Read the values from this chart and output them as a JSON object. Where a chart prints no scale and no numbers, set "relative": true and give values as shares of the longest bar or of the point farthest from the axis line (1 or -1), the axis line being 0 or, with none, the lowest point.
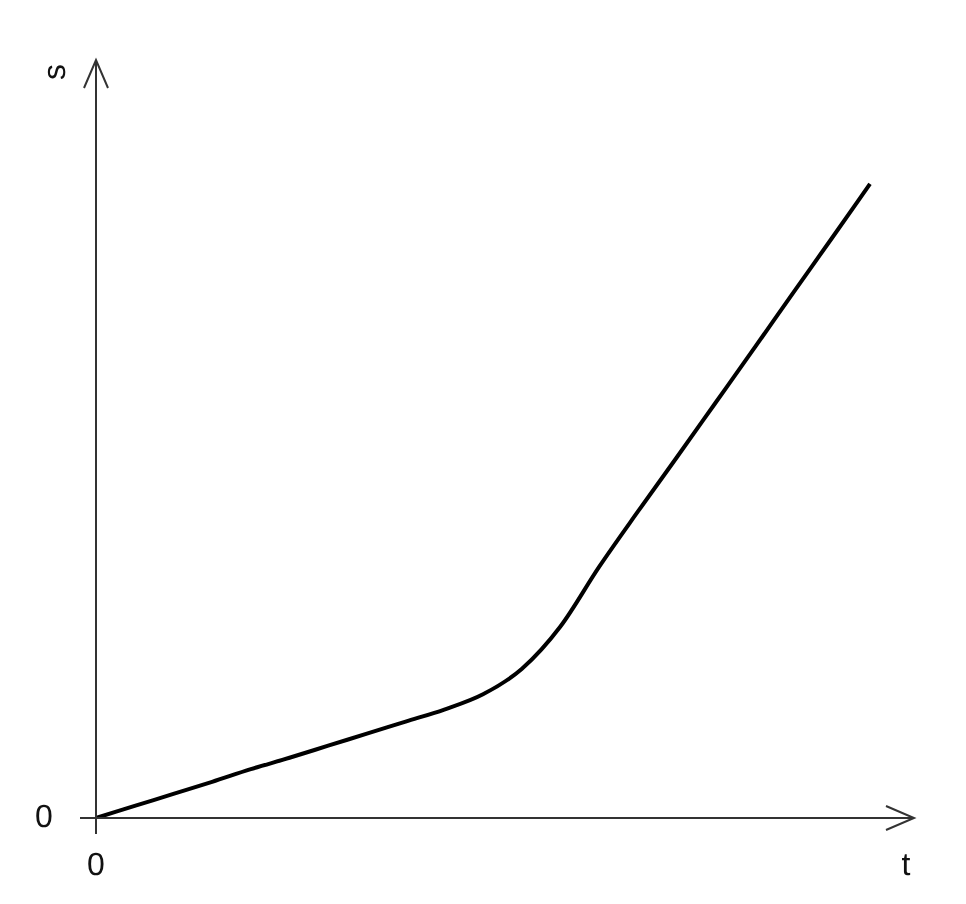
{
  "chart_data": {
    "type": "line",
    "relative": true,
    "xlabel": "t",
    "ylabel": "s",
    "color": "#000000",
    "categories": [
      null,
      null,
      null,
      null,
      null,
      null,
      null,
      null,
      null,
      null,
      null,
      null,
      null,
      null,
      null,
      null,
      null,
      null,
      null,
      null,
      null
    ],
    "values": [
      0,
      0.019,
      0.038,
      0.057,
      0.077,
      0.095,
      0.114,
      0.133,
      0.152,
      0.171,
      0.195,
      0.235,
      0.302,
      0.396,
      0.483,
      0.568,
      0.654,
      0.74,
      0.827,
      0.913,
      1
    ],
    "annotations": [
      "0",
      "0"
    ]
  }
}
